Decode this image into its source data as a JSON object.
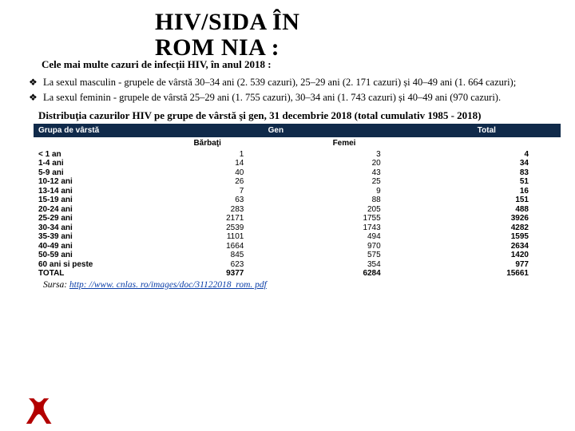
{
  "title_l1": "HIV/SIDA ÎN",
  "title_l2": "ROM NIA :",
  "subtitle": "Cele mai multe cazuri de infecții HIV, în anul 2018 :",
  "bullets": [
    "La sexul masculin - grupele de vârstă 30–34 ani (2. 539 cazuri), 25–29 ani (2. 171 cazuri) și 40–49 ani (1. 664 cazuri);",
    "La sexul feminin - grupele de vârstă 25–29 ani (1. 755 cazuri), 30–34 ani (1. 743 cazuri) și 40–49 ani (970 cazuri)."
  ],
  "table_caption": "Distribuţia cazurilor HIV pe grupe de vârstă şi gen, 31 decembrie 2018 (total cumulativ 1985 - 2018)",
  "headers": {
    "age": "Grupa de vârstă",
    "gen": "Gen",
    "total": "Total",
    "m": "Bărbaţi",
    "f": "Femei"
  },
  "rows": [
    {
      "label": "< 1 an",
      "m": "1",
      "f": "3",
      "t": "4"
    },
    {
      "label": "1-4 ani",
      "m": "14",
      "f": "20",
      "t": "34"
    },
    {
      "label": "5-9 ani",
      "m": "40",
      "f": "43",
      "t": "83"
    },
    {
      "label": "10-12 ani",
      "m": "26",
      "f": "25",
      "t": "51"
    },
    {
      "label": "13-14 ani",
      "m": "7",
      "f": "9",
      "t": "16"
    },
    {
      "label": "15-19 ani",
      "m": "63",
      "f": "88",
      "t": "151"
    },
    {
      "label": "20-24 ani",
      "m": "283",
      "f": "205",
      "t": "488"
    },
    {
      "label": "25-29 ani",
      "m": "2171",
      "f": "1755",
      "t": "3926"
    },
    {
      "label": "30-34 ani",
      "m": "2539",
      "f": "1743",
      "t": "4282"
    },
    {
      "label": "35-39 ani",
      "m": "1101",
      "f": "494",
      "t": "1595"
    },
    {
      "label": "40-49 ani",
      "m": "1664",
      "f": "970",
      "t": "2634"
    },
    {
      "label": "50-59 ani",
      "m": "845",
      "f": "575",
      "t": "1420"
    },
    {
      "label": "60 ani si peste",
      "m": "623",
      "f": "354",
      "t": "977"
    },
    {
      "label": "TOTAL",
      "m": "9377",
      "f": "6284",
      "t": "15661"
    }
  ],
  "source_label": "Sursa:",
  "source_url_text": "http: //www. cnlas. ro/images/doc/31122018_rom. pdf",
  "source_href": "http://www.cnlas.ro/images/doc/31122018_rom.pdf",
  "colors": {
    "header_bg": "#102a4a",
    "header_fg": "#ffffff",
    "ribbon": "#b30000"
  }
}
